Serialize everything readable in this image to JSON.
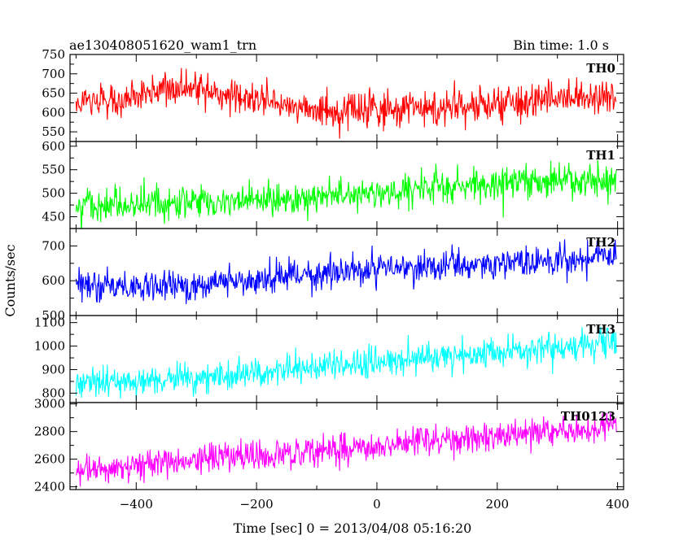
{
  "header": {
    "left_title": "ae130408051620_wam1_trn",
    "right_title": "Bin time: 1.0 s"
  },
  "chart_data": {
    "type": "line",
    "xlabel": "Time [sec] 0 = 2013/04/08 05:16:20",
    "ylabel": "Counts/sec",
    "xlim": [
      -510,
      410
    ],
    "xticks": [
      -400,
      -200,
      0,
      200,
      400
    ],
    "bin_time_s": 1.0,
    "grid": false,
    "panels": [
      {
        "label": "TH0",
        "color": "#ff0000",
        "ylim": [
          525,
          750
        ],
        "yticks": [
          550,
          600,
          650,
          700,
          750
        ],
        "trend": {
          "x": [
            -500,
            -420,
            -350,
            -300,
            -200,
            -100,
            -60,
            0,
            100,
            200,
            300,
            400
          ],
          "y": [
            625,
            640,
            662,
            655,
            630,
            605,
            595,
            610,
            615,
            625,
            635,
            640
          ]
        },
        "noise_sd": 22
      },
      {
        "label": "TH1",
        "color": "#00ff00",
        "ylim": [
          425,
          610
        ],
        "yticks": [
          450,
          500,
          550,
          600
        ],
        "trend": {
          "x": [
            -500,
            -300,
            -100,
            0,
            100,
            200,
            300,
            400
          ],
          "y": [
            470,
            480,
            492,
            500,
            510,
            525,
            532,
            530
          ]
        },
        "noise_sd": 18
      },
      {
        "label": "TH2",
        "color": "#0000ff",
        "ylim": [
          500,
          750
        ],
        "yticks": [
          500,
          600,
          700
        ],
        "trend": {
          "x": [
            -500,
            -300,
            -200,
            -100,
            0,
            100,
            200,
            300,
            400
          ],
          "y": [
            580,
            588,
            600,
            618,
            635,
            640,
            652,
            660,
            675
          ]
        },
        "noise_sd": 22
      },
      {
        "label": "TH3",
        "color": "#00ffff",
        "ylim": [
          760,
          1130
        ],
        "yticks": [
          800,
          900,
          1000,
          1100
        ],
        "trend": {
          "x": [
            -500,
            -400,
            -300,
            -200,
            -100,
            0,
            100,
            200,
            300,
            400
          ],
          "y": [
            840,
            852,
            868,
            885,
            910,
            935,
            958,
            975,
            995,
            1025
          ]
        },
        "noise_sd": 32
      },
      {
        "label": "TH0123",
        "color": "#ff00ff",
        "ylim": [
          2380,
          3010
        ],
        "yticks": [
          2400,
          2600,
          2800,
          3000
        ],
        "trend": {
          "x": [
            -500,
            -400,
            -300,
            -200,
            -100,
            0,
            100,
            200,
            300,
            400
          ],
          "y": [
            2510,
            2560,
            2600,
            2620,
            2650,
            2700,
            2730,
            2760,
            2800,
            2850
          ]
        },
        "noise_sd": 55
      }
    ]
  }
}
